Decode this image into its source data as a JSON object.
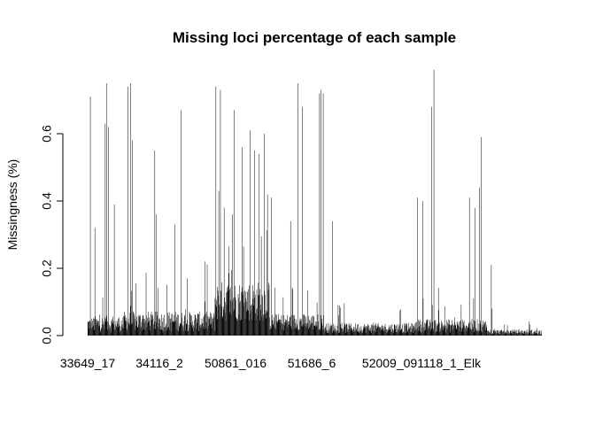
{
  "chart_data": {
    "type": "bar",
    "title": "Missing loci percentage of each sample",
    "xlabel": "",
    "ylabel": "Missingness (%)",
    "ylim": [
      0,
      0.8
    ],
    "yticks": [
      0.0,
      0.2,
      0.4,
      0.6
    ],
    "ytick_labels": [
      "0.0",
      "0.2",
      "0.4",
      "0.6"
    ],
    "category_labels_shown": [
      "33649_17",
      "34116_2",
      "50861_016",
      "51686_6",
      "52009_091118_1_Elk"
    ],
    "grid": false,
    "legend": "none",
    "bar_color": "#000000",
    "segments": [
      {
        "start": 0,
        "end": 0.012,
        "base": 0.05,
        "spread": 0.04
      },
      {
        "start": 0.012,
        "end": 0.08,
        "base": 0.03,
        "spread": 0.05
      },
      {
        "start": 0.08,
        "end": 0.28,
        "base": 0.04,
        "spread": 0.06
      },
      {
        "start": 0.28,
        "end": 0.4,
        "base": 0.14,
        "spread": 0.12
      },
      {
        "start": 0.4,
        "end": 0.52,
        "base": 0.05,
        "spread": 0.05
      },
      {
        "start": 0.52,
        "end": 0.72,
        "base": 0.025,
        "spread": 0.03
      },
      {
        "start": 0.72,
        "end": 0.88,
        "base": 0.03,
        "spread": 0.04
      },
      {
        "start": 0.88,
        "end": 1.0,
        "base": 0.01,
        "spread": 0.015
      }
    ],
    "peaks": [
      {
        "x": 0.005,
        "y": 0.71
      },
      {
        "x": 0.015,
        "y": 0.32
      },
      {
        "x": 0.038,
        "y": 0.63
      },
      {
        "x": 0.041,
        "y": 0.75
      },
      {
        "x": 0.045,
        "y": 0.62
      },
      {
        "x": 0.058,
        "y": 0.39
      },
      {
        "x": 0.088,
        "y": 0.74
      },
      {
        "x": 0.094,
        "y": 0.75
      },
      {
        "x": 0.098,
        "y": 0.58
      },
      {
        "x": 0.147,
        "y": 0.55
      },
      {
        "x": 0.15,
        "y": 0.36
      },
      {
        "x": 0.205,
        "y": 0.67
      },
      {
        "x": 0.192,
        "y": 0.33
      },
      {
        "x": 0.258,
        "y": 0.22
      },
      {
        "x": 0.282,
        "y": 0.74
      },
      {
        "x": 0.288,
        "y": 0.43
      },
      {
        "x": 0.292,
        "y": 0.73
      },
      {
        "x": 0.3,
        "y": 0.38
      },
      {
        "x": 0.318,
        "y": 0.36
      },
      {
        "x": 0.322,
        "y": 0.67
      },
      {
        "x": 0.34,
        "y": 0.56
      },
      {
        "x": 0.357,
        "y": 0.61
      },
      {
        "x": 0.367,
        "y": 0.55
      },
      {
        "x": 0.377,
        "y": 0.54
      },
      {
        "x": 0.388,
        "y": 0.6
      },
      {
        "x": 0.395,
        "y": 0.42
      },
      {
        "x": 0.404,
        "y": 0.41
      },
      {
        "x": 0.446,
        "y": 0.34
      },
      {
        "x": 0.463,
        "y": 0.75
      },
      {
        "x": 0.472,
        "y": 0.68
      },
      {
        "x": 0.51,
        "y": 0.72
      },
      {
        "x": 0.514,
        "y": 0.73
      },
      {
        "x": 0.518,
        "y": 0.72
      },
      {
        "x": 0.538,
        "y": 0.34
      },
      {
        "x": 0.725,
        "y": 0.41
      },
      {
        "x": 0.737,
        "y": 0.4
      },
      {
        "x": 0.756,
        "y": 0.68
      },
      {
        "x": 0.762,
        "y": 0.79
      },
      {
        "x": 0.84,
        "y": 0.41
      },
      {
        "x": 0.852,
        "y": 0.38
      },
      {
        "x": 0.862,
        "y": 0.44
      },
      {
        "x": 0.866,
        "y": 0.59
      },
      {
        "x": 0.888,
        "y": 0.21
      },
      {
        "x": 0.89,
        "y": 0.08
      }
    ]
  }
}
